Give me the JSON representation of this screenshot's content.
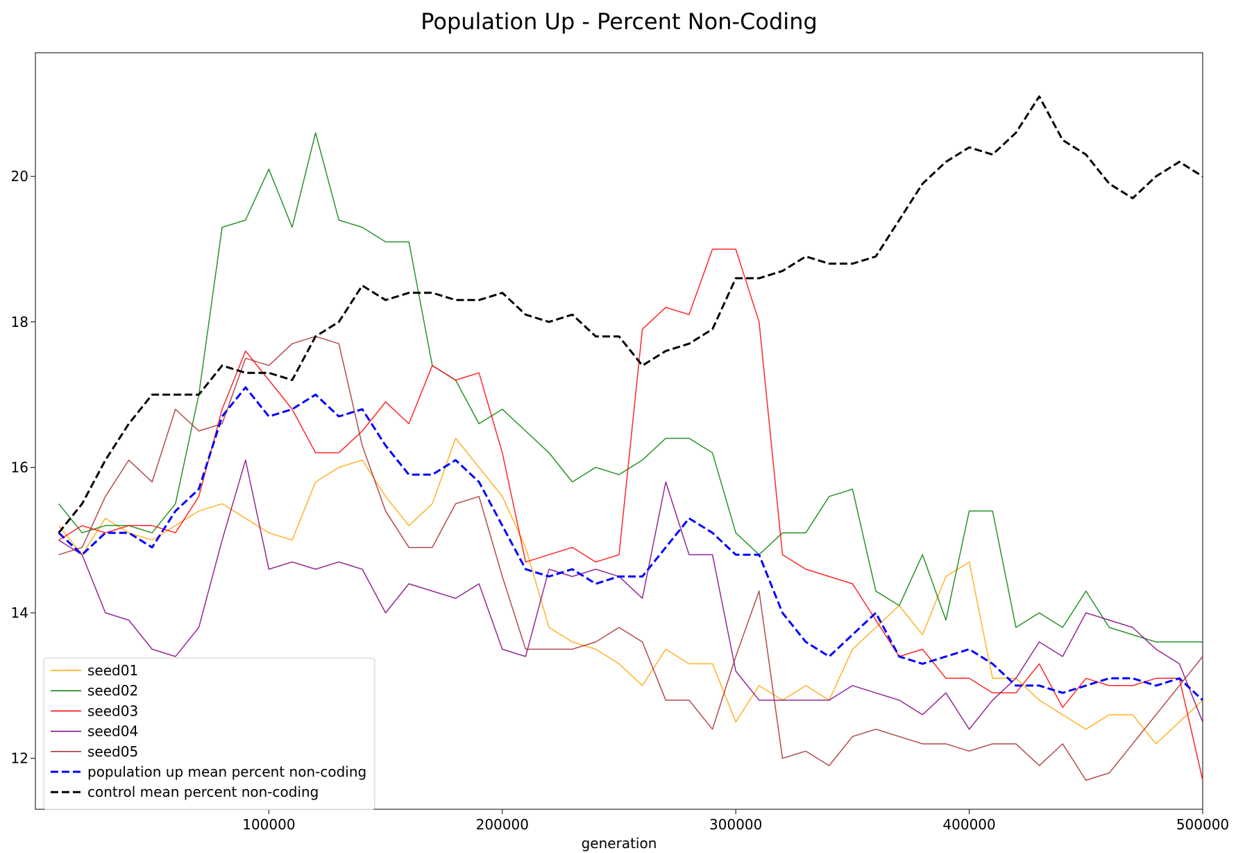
{
  "chart_data": {
    "type": "line",
    "title": "Population Up - Percent Non-Coding",
    "xlabel": "generation",
    "ylabel": "",
    "xlim": [
      0,
      500000
    ],
    "ylim": [
      11.3,
      21.7
    ],
    "x_ticks": [
      100000,
      200000,
      300000,
      400000,
      500000
    ],
    "y_ticks": [
      12,
      14,
      16,
      18,
      20
    ],
    "grid": false,
    "legend_position": "lower-left",
    "x": [
      10000,
      20000,
      30000,
      40000,
      50000,
      60000,
      70000,
      80000,
      90000,
      100000,
      110000,
      120000,
      130000,
      140000,
      150000,
      160000,
      170000,
      180000,
      190000,
      200000,
      210000,
      220000,
      230000,
      240000,
      250000,
      260000,
      270000,
      280000,
      290000,
      300000,
      310000,
      320000,
      330000,
      340000,
      350000,
      360000,
      370000,
      380000,
      390000,
      400000,
      410000,
      420000,
      430000,
      440000,
      450000,
      460000,
      470000,
      480000,
      490000,
      500000
    ],
    "series": [
      {
        "name": "seed01",
        "color": "#ffa500",
        "style": "solid",
        "width": 1.5,
        "values": [
          15.2,
          14.8,
          15.3,
          15.1,
          15.0,
          15.2,
          15.4,
          15.5,
          15.3,
          15.1,
          15.0,
          15.8,
          16.0,
          16.1,
          15.6,
          15.2,
          15.5,
          16.4,
          16.0,
          15.6,
          14.9,
          13.8,
          13.6,
          13.5,
          13.3,
          13.0,
          13.5,
          13.3,
          13.3,
          12.5,
          13.0,
          12.8,
          13.0,
          12.8,
          13.5,
          13.8,
          14.1,
          13.7,
          14.5,
          14.7,
          13.1,
          13.1,
          12.8,
          12.6,
          12.4,
          12.6,
          12.6,
          12.2,
          12.5,
          12.8
        ]
      },
      {
        "name": "seed02",
        "color": "#008000",
        "style": "solid",
        "width": 1.5,
        "values": [
          15.5,
          15.1,
          15.2,
          15.2,
          15.1,
          15.5,
          17.0,
          19.3,
          19.4,
          20.1,
          19.3,
          20.6,
          19.4,
          19.3,
          19.1,
          19.1,
          17.4,
          17.2,
          16.6,
          16.8,
          16.5,
          16.2,
          15.8,
          16.0,
          15.9,
          16.1,
          16.4,
          16.4,
          16.2,
          15.1,
          14.8,
          15.1,
          15.1,
          15.6,
          15.7,
          14.3,
          14.1,
          14.8,
          13.9,
          15.4,
          15.4,
          13.8,
          14.0,
          13.8,
          14.3,
          13.8,
          13.7,
          13.6,
          13.6,
          13.6
        ]
      },
      {
        "name": "seed03",
        "color": "#ff0000",
        "style": "solid",
        "width": 1.5,
        "values": [
          15.0,
          15.2,
          15.1,
          15.2,
          15.2,
          15.1,
          15.6,
          16.8,
          17.6,
          17.2,
          16.8,
          16.2,
          16.2,
          16.5,
          16.9,
          16.6,
          17.4,
          17.2,
          17.3,
          16.2,
          14.7,
          14.8,
          14.9,
          14.7,
          14.8,
          17.9,
          18.2,
          18.1,
          19.0,
          19.0,
          18.0,
          14.8,
          14.6,
          14.5,
          14.4,
          13.9,
          13.4,
          13.5,
          13.1,
          13.1,
          12.9,
          12.9,
          13.3,
          12.7,
          13.1,
          13.0,
          13.0,
          13.1,
          13.1,
          11.7
        ]
      },
      {
        "name": "seed04",
        "color": "#800080",
        "style": "solid",
        "width": 1.5,
        "values": [
          15.0,
          14.8,
          14.0,
          13.9,
          13.5,
          13.4,
          13.8,
          15.0,
          16.1,
          14.6,
          14.7,
          14.6,
          14.7,
          14.6,
          14.0,
          14.4,
          14.3,
          14.2,
          14.4,
          13.5,
          13.4,
          14.6,
          14.5,
          14.6,
          14.5,
          14.2,
          15.8,
          14.8,
          14.8,
          13.2,
          12.8,
          12.8,
          12.8,
          12.8,
          13.0,
          12.9,
          12.8,
          12.6,
          12.9,
          12.4,
          12.8,
          13.1,
          13.6,
          13.4,
          14.0,
          13.9,
          13.8,
          13.5,
          13.3,
          12.5
        ]
      },
      {
        "name": "seed05",
        "color": "#a52a2a",
        "style": "solid",
        "width": 1.5,
        "values": [
          14.8,
          14.9,
          15.6,
          16.1,
          15.8,
          16.8,
          16.5,
          16.6,
          17.5,
          17.4,
          17.7,
          17.8,
          17.7,
          16.3,
          15.4,
          14.9,
          14.9,
          15.5,
          15.6,
          14.5,
          13.5,
          13.5,
          13.5,
          13.6,
          13.8,
          13.6,
          12.8,
          12.8,
          12.4,
          13.4,
          14.3,
          12.0,
          12.1,
          11.9,
          12.3,
          12.4,
          12.3,
          12.2,
          12.2,
          12.1,
          12.2,
          12.2,
          11.9,
          12.2,
          11.7,
          11.8,
          12.2,
          12.6,
          13.0,
          13.4
        ]
      },
      {
        "name": "population up mean percent non-coding",
        "color": "#0000ff",
        "style": "dashed",
        "width": 3,
        "values": [
          15.1,
          14.8,
          15.1,
          15.1,
          14.9,
          15.4,
          15.7,
          16.7,
          17.1,
          16.7,
          16.8,
          17.0,
          16.7,
          16.8,
          16.3,
          15.9,
          15.9,
          16.1,
          15.8,
          15.2,
          14.6,
          14.5,
          14.6,
          14.4,
          14.5,
          14.5,
          14.9,
          15.3,
          15.1,
          14.8,
          14.8,
          14.0,
          13.6,
          13.4,
          13.7,
          14.0,
          13.4,
          13.3,
          13.4,
          13.5,
          13.3,
          13.0,
          13.0,
          12.9,
          13.0,
          13.1,
          13.1,
          13.0,
          13.1,
          12.8
        ]
      },
      {
        "name": "control mean percent non-coding",
        "color": "#000000",
        "style": "dashed",
        "width": 3,
        "values": [
          15.1,
          15.5,
          16.1,
          16.6,
          17.0,
          17.0,
          17.0,
          17.4,
          17.3,
          17.3,
          17.2,
          17.8,
          18.0,
          18.5,
          18.3,
          18.4,
          18.4,
          18.3,
          18.3,
          18.4,
          18.1,
          18.0,
          18.1,
          17.8,
          17.8,
          17.4,
          17.6,
          17.7,
          17.9,
          18.6,
          18.6,
          18.7,
          18.9,
          18.8,
          18.8,
          18.9,
          19.4,
          19.9,
          20.2,
          20.4,
          20.3,
          20.6,
          21.1,
          20.5,
          20.3,
          19.9,
          19.7,
          20.0,
          20.2,
          20.0
        ]
      }
    ]
  }
}
